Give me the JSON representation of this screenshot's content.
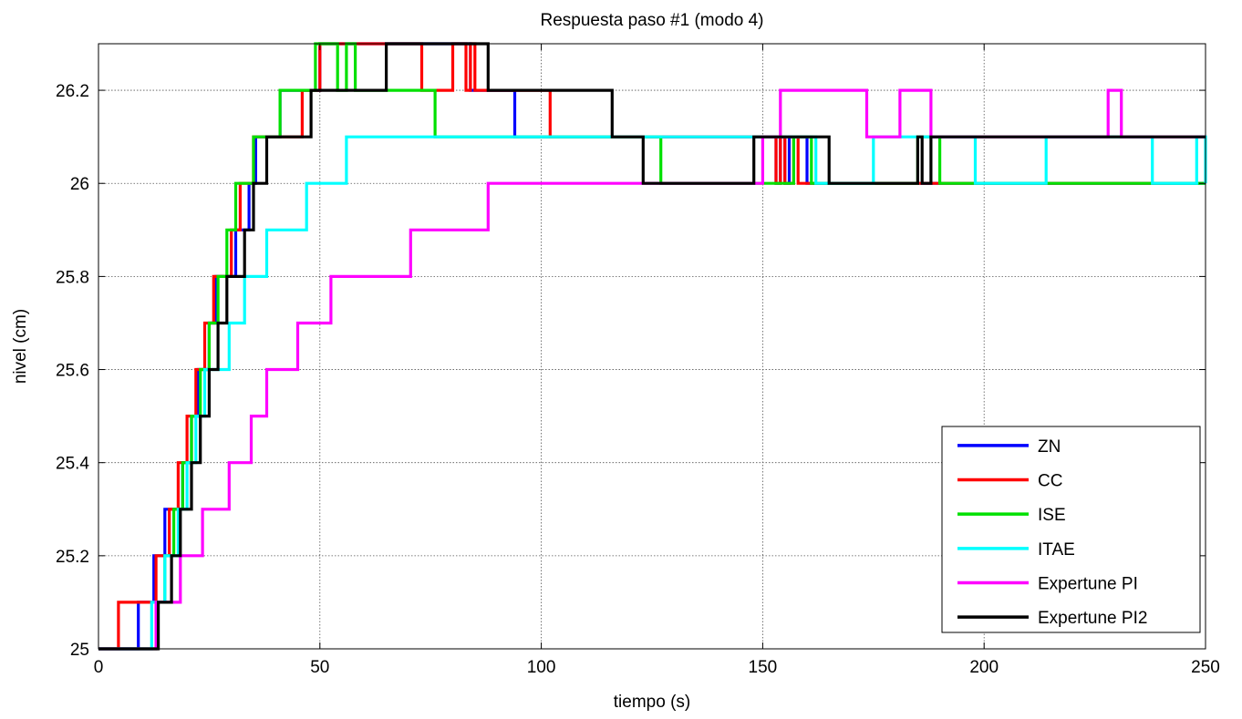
{
  "chart_data": {
    "type": "line",
    "title": "Respuesta paso #1 (modo 4)",
    "xlabel": "tiempo (s)",
    "ylabel": "nivel (cm)",
    "xlim": [
      0,
      250
    ],
    "ylim": [
      25,
      26.3
    ],
    "xticks": [
      0,
      50,
      100,
      150,
      200,
      250
    ],
    "xtick_labels": [
      "0",
      "50",
      "100",
      "150",
      "200",
      "250"
    ],
    "yticks": [
      25,
      25.2,
      25.4,
      25.6,
      25.8,
      26,
      26.2
    ],
    "ytick_labels": [
      "25",
      "25.2",
      "25.4",
      "25.6",
      "25.8",
      "26",
      "26.2"
    ],
    "grid": true,
    "legend_position": "bottom-right",
    "series": [
      {
        "name": "ZN",
        "color": "#0000ff",
        "x": [
          0,
          7.5,
          9,
          11,
          12.5,
          15,
          17,
          19,
          21,
          22.5,
          25,
          26.5,
          29,
          31,
          34,
          35.5,
          40,
          41,
          47,
          50,
          82,
          84,
          94,
          152,
          153,
          154,
          155,
          156,
          160,
          250
        ],
        "y": [
          25,
          25,
          25.1,
          25.1,
          25.2,
          25.3,
          25.3,
          25.4,
          25.5,
          25.6,
          25.7,
          25.8,
          25.8,
          25.9,
          26,
          26.1,
          26.1,
          26.2,
          26.2,
          26.3,
          26.3,
          26.2,
          26.1,
          26.1,
          26,
          26.1,
          26,
          26.1,
          26,
          26
        ]
      },
      {
        "name": "CC",
        "color": "#ff0000",
        "x": [
          0,
          4.5,
          8.5,
          10.5,
          13,
          16,
          18,
          20,
          22,
          24,
          26,
          28,
          30,
          32,
          35,
          39,
          46,
          50,
          73,
          80,
          83,
          84,
          85,
          86,
          102,
          107,
          111,
          125,
          153,
          154,
          155,
          157,
          158,
          241,
          242
        ],
        "y": [
          25,
          25.1,
          25.1,
          25.1,
          25.2,
          25.3,
          25.4,
          25.5,
          25.6,
          25.7,
          25.8,
          25.8,
          25.9,
          26,
          26.1,
          26.1,
          26.2,
          26.3,
          26.2,
          26.3,
          26.2,
          26.3,
          26.2,
          26.2,
          26.1,
          26.1,
          26.1,
          26.1,
          26,
          26.1,
          26,
          26.1,
          26,
          26,
          26
        ]
      },
      {
        "name": "ISE",
        "color": "#00e000",
        "x": [
          0,
          11.5,
          13,
          15,
          17,
          19,
          21,
          23,
          25,
          27,
          29,
          31,
          33,
          35,
          40,
          41,
          45,
          49,
          54,
          56,
          58,
          76,
          107,
          127,
          157,
          161,
          185,
          190,
          197,
          250
        ],
        "y": [
          25,
          25,
          25.1,
          25.2,
          25.3,
          25.4,
          25.5,
          25.6,
          25.7,
          25.8,
          25.9,
          26,
          26,
          26.1,
          26.1,
          26.2,
          26.2,
          26.3,
          26.2,
          26.3,
          26.2,
          26.1,
          26.1,
          26,
          26.1,
          26,
          26.1,
          26,
          26,
          26
        ]
      },
      {
        "name": "ITAE",
        "color": "#00ffff",
        "x": [
          0,
          10,
          12,
          15,
          18,
          20,
          22,
          24,
          26.5,
          29.5,
          33,
          34.5,
          38,
          43.5,
          47,
          50,
          54,
          56,
          60,
          162,
          175,
          198,
          214,
          238,
          248,
          250
        ],
        "y": [
          25,
          25,
          25.1,
          25.2,
          25.3,
          25.4,
          25.5,
          25.6,
          25.6,
          25.7,
          25.8,
          25.8,
          25.9,
          25.9,
          26,
          26,
          26,
          26.1,
          26.1,
          26,
          26.1,
          26,
          26.1,
          26,
          26.1,
          26
        ]
      },
      {
        "name": "Expertune PI",
        "color": "#ff00ff",
        "x": [
          0,
          13,
          18.5,
          20.5,
          23.5,
          25.5,
          28,
          29.5,
          33,
          34.5,
          38,
          40.5,
          44,
          45,
          52.5,
          55,
          70.5,
          78,
          88,
          125,
          150,
          154,
          173.5,
          181,
          188,
          200,
          228,
          231,
          250
        ],
        "y": [
          25,
          25.1,
          25.2,
          25.2,
          25.3,
          25.3,
          25.3,
          25.4,
          25.4,
          25.5,
          25.6,
          25.6,
          25.6,
          25.7,
          25.8,
          25.8,
          25.9,
          25.9,
          26,
          26,
          26.1,
          26.2,
          26.1,
          26.2,
          26.1,
          26.1,
          26.2,
          26.1,
          26.1
        ]
      },
      {
        "name": "Expertune PI2",
        "color": "#000000",
        "x": [
          0,
          11,
          13.5,
          16.5,
          18.5,
          21,
          23,
          25,
          27,
          29,
          31,
          33,
          35,
          38,
          43,
          48,
          50,
          65,
          88,
          96,
          116,
          123,
          148,
          165,
          185,
          186,
          188,
          190,
          195,
          250
        ],
        "y": [
          25,
          25,
          25.1,
          25.2,
          25.3,
          25.4,
          25.5,
          25.6,
          25.7,
          25.8,
          25.8,
          25.9,
          26,
          26.1,
          26.1,
          26.2,
          26.2,
          26.3,
          26.2,
          26.2,
          26.1,
          26,
          26.1,
          26,
          26.1,
          26,
          26.1,
          26.1,
          26.1,
          26.1
        ]
      }
    ]
  }
}
